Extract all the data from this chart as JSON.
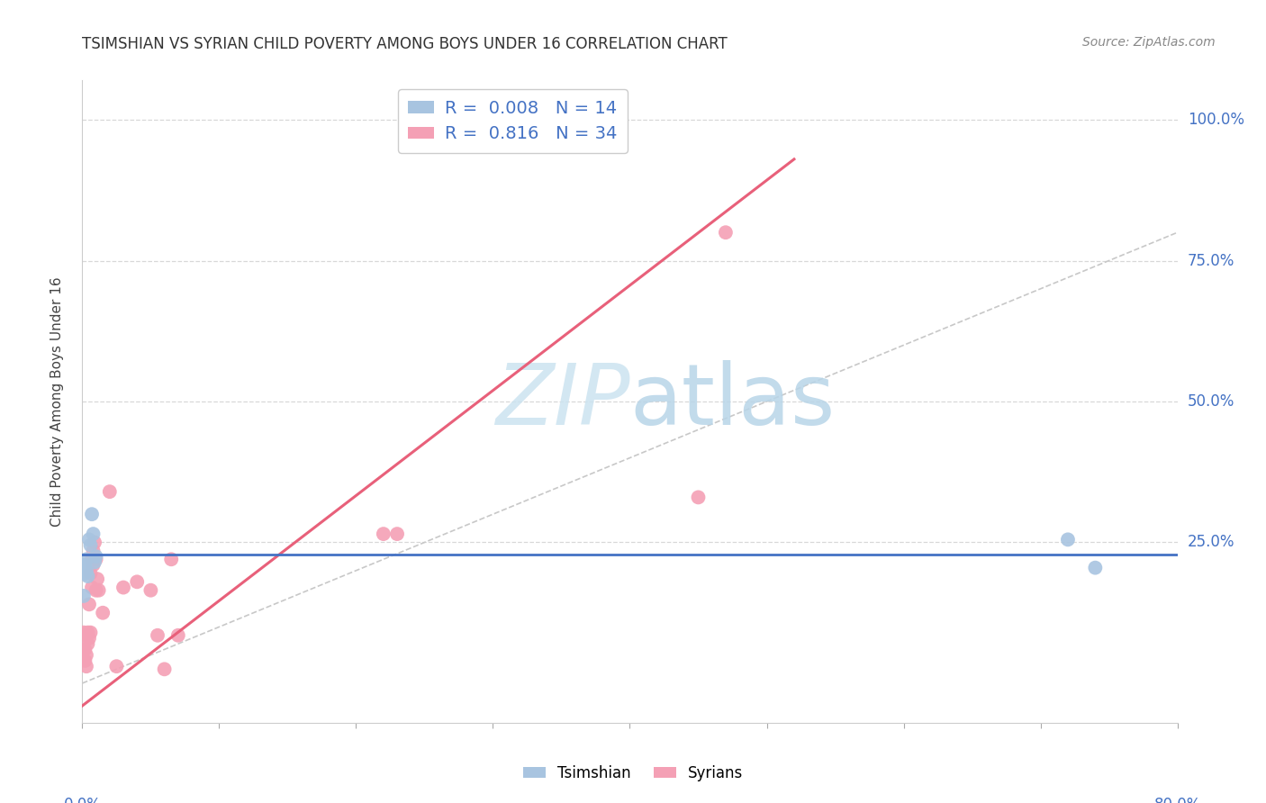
{
  "title": "TSIMSHIAN VS SYRIAN CHILD POVERTY AMONG BOYS UNDER 16 CORRELATION CHART",
  "source": "Source: ZipAtlas.com",
  "ylabel": "Child Poverty Among Boys Under 16",
  "tsimshian_color": "#a8c4e0",
  "syrian_color": "#f4a0b5",
  "tsimshian_line_color": "#4472c4",
  "syrian_line_color": "#e8607a",
  "diagonal_color": "#c8c8c8",
  "background_color": "#ffffff",
  "grid_color": "#d8d8d8",
  "watermark_color": "#cce5f0",
  "xlim": [
    0.0,
    0.8
  ],
  "ylim": [
    -0.07,
    1.07
  ],
  "ytick_values": [
    0.0,
    0.25,
    0.5,
    0.75,
    1.0
  ],
  "ytick_labels": [
    "",
    "25.0%",
    "50.0%",
    "75.0%",
    "100.0%"
  ],
  "tsimshian_R": 0.008,
  "tsimshian_N": 14,
  "syrian_R": 0.816,
  "syrian_N": 34,
  "tsimshian_scatter_x": [
    0.001,
    0.002,
    0.002,
    0.003,
    0.003,
    0.004,
    0.005,
    0.006,
    0.007,
    0.008,
    0.009,
    0.01,
    0.72,
    0.74
  ],
  "tsimshian_scatter_y": [
    0.155,
    0.21,
    0.195,
    0.22,
    0.2,
    0.19,
    0.255,
    0.245,
    0.3,
    0.265,
    0.215,
    0.225,
    0.255,
    0.205
  ],
  "syrian_scatter_x": [
    0.001,
    0.002,
    0.002,
    0.003,
    0.003,
    0.004,
    0.004,
    0.005,
    0.005,
    0.006,
    0.006,
    0.007,
    0.007,
    0.008,
    0.008,
    0.009,
    0.01,
    0.01,
    0.011,
    0.012,
    0.015,
    0.02,
    0.025,
    0.03,
    0.04,
    0.05,
    0.055,
    0.06,
    0.065,
    0.07,
    0.22,
    0.23,
    0.45,
    0.47
  ],
  "syrian_scatter_y": [
    0.09,
    0.04,
    0.06,
    0.03,
    0.05,
    0.07,
    0.09,
    0.08,
    0.14,
    0.09,
    0.195,
    0.17,
    0.22,
    0.21,
    0.235,
    0.25,
    0.22,
    0.165,
    0.185,
    0.165,
    0.125,
    0.34,
    0.03,
    0.17,
    0.18,
    0.165,
    0.085,
    0.025,
    0.22,
    0.085,
    0.265,
    0.265,
    0.33,
    0.8
  ],
  "syrian_line_x0": 0.0,
  "syrian_line_y0": -0.04,
  "syrian_line_x1": 0.52,
  "syrian_line_y1": 0.93,
  "tsimshian_line_y": 0.228
}
